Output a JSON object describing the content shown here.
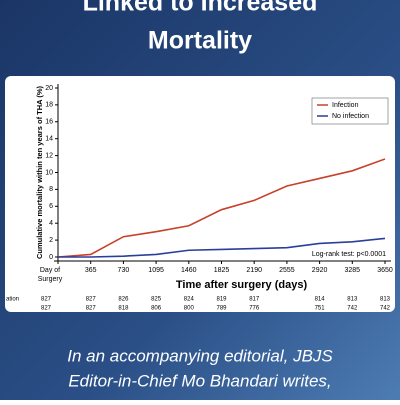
{
  "header": {
    "title_lines": [
      "Linked to Increased",
      "Mortality"
    ]
  },
  "chart_data": {
    "type": "line",
    "ylabel": "Cumulative mortality within ten years of THA (%)",
    "xlabel": "Time after surgery (days)",
    "x": [
      0,
      365,
      730,
      1095,
      1460,
      1825,
      2190,
      2555,
      2920,
      3285,
      3650
    ],
    "series": [
      {
        "name": "Infection",
        "color": "#c8412a",
        "values": [
          0,
          0.3,
          2.4,
          3.0,
          3.7,
          5.6,
          6.7,
          8.4,
          9.3,
          10.2,
          11.6
        ]
      },
      {
        "name": "No infection",
        "color": "#2a3f9a",
        "values": [
          0,
          0,
          0.1,
          0.3,
          0.8,
          0.9,
          1.0,
          1.1,
          1.6,
          1.8,
          2.2
        ]
      }
    ],
    "xlim": [
      0,
      3650
    ],
    "ylim": [
      0,
      20
    ],
    "xticks": [
      {
        "value": 0,
        "label": "Day of Surgery"
      },
      365,
      730,
      1095,
      1460,
      1825,
      2190,
      2555,
      2920,
      3285,
      3650
    ],
    "yticks": [
      0,
      2,
      4,
      6,
      8,
      10,
      12,
      14,
      16,
      18,
      20
    ],
    "legend": "upper right",
    "annotation": "Log-rank test: p<0.0001",
    "risk_table": {
      "label": "ation",
      "rows": [
        [
          827,
          827,
          826,
          825,
          824,
          819,
          817,
          null,
          814,
          813,
          813
        ],
        [
          827,
          827,
          818,
          806,
          800,
          789,
          776,
          null,
          751,
          742,
          742
        ]
      ]
    }
  },
  "footer": {
    "lines": [
      "In an accompanying editorial, JBJS",
      "Editor-in-Chief Mo Bhandari writes,"
    ]
  }
}
